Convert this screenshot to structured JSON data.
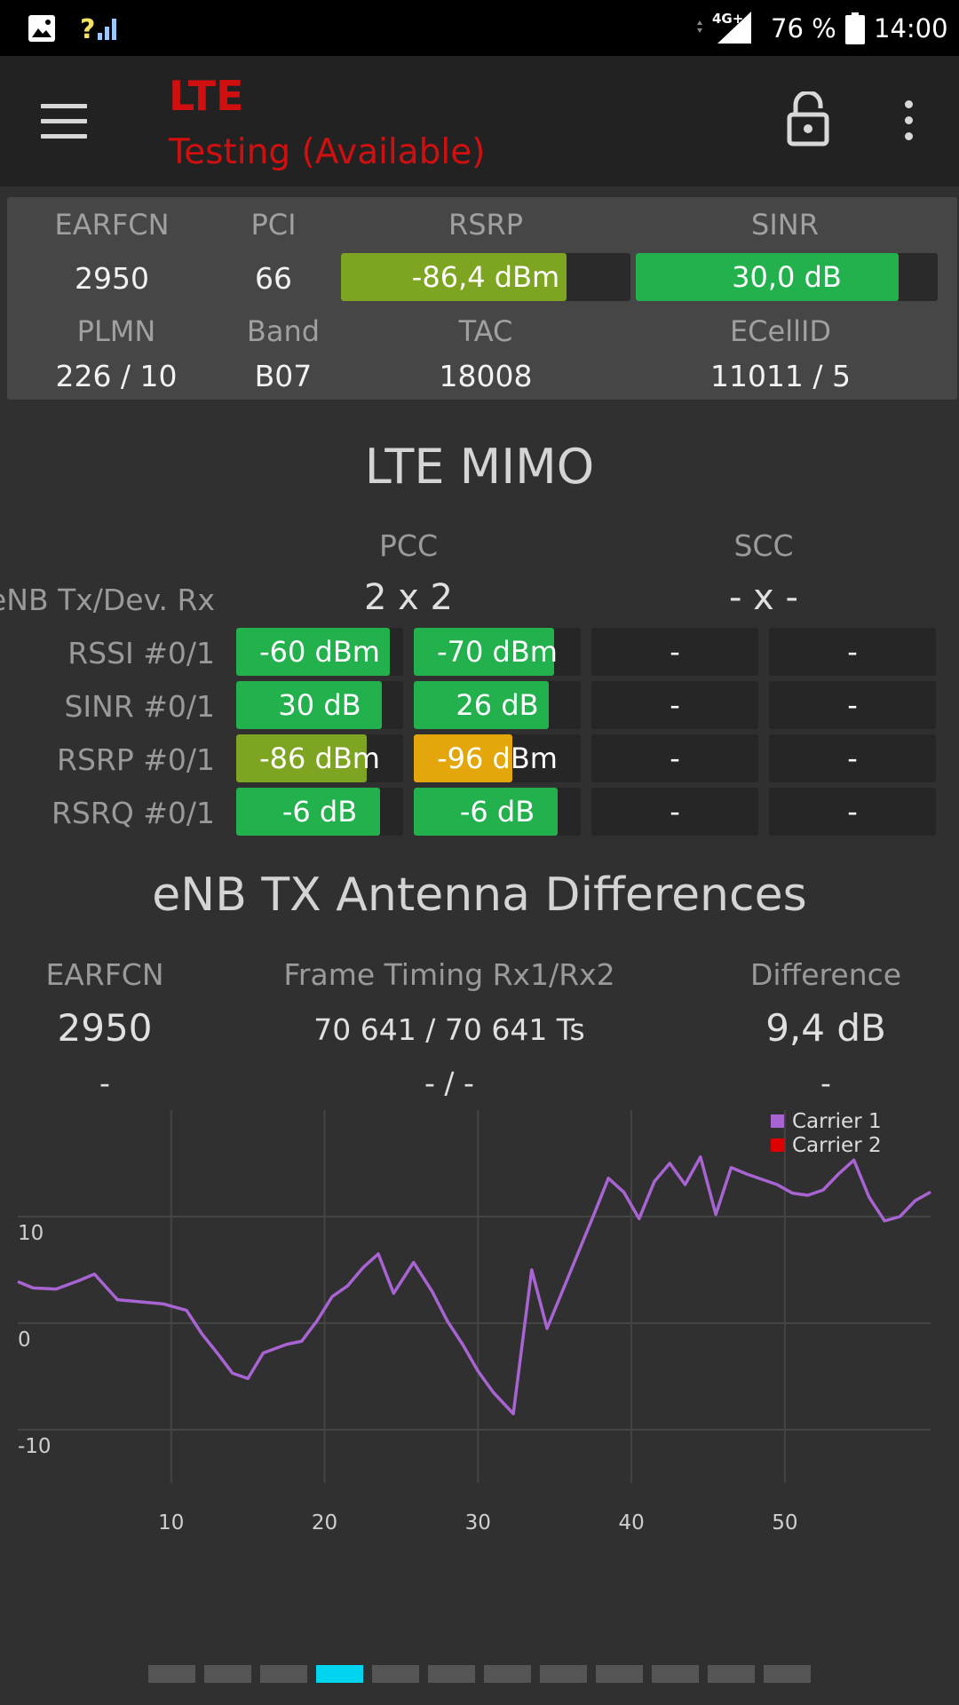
{
  "status_bar": {
    "image_icon": "image-icon",
    "signal_icon": "signal-unknown-icon",
    "network_type": "4G+",
    "battery": "76 %",
    "time": "14:00"
  },
  "toolbar": {
    "title": "LTE",
    "subtitle": "Testing (Available)",
    "title_color": "#d01010",
    "menu_icon": "hamburger-menu-icon",
    "lock_icon": "unlock-icon",
    "more_icon": "more-vert-icon"
  },
  "info": {
    "labels": {
      "earfcn": "EARFCN",
      "pci": "PCI",
      "rsrp": "RSRP",
      "sinr": "SINR",
      "plmn": "PLMN",
      "band": "Band",
      "tac": "TAC",
      "ecellid": "ECellID"
    },
    "earfcn": "2950",
    "pci": "66",
    "rsrp": {
      "text": "-86,4 dBm",
      "level": 0.78,
      "color": "#7ea521"
    },
    "sinr": {
      "text": "30,0 dB",
      "level": 0.87,
      "color": "#22b14c"
    },
    "plmn": "226 / 10",
    "band": "B07",
    "tac": "18008",
    "ecellid": "11011 / 5"
  },
  "mimo": {
    "title": "LTE MIMO",
    "pcc_label": "PCC",
    "scc_label": "SCC",
    "tx_rx_label": "eNB Tx/Dev. Rx",
    "pcc_value": "2 x 2",
    "scc_value": "- x -",
    "rows": [
      {
        "label": "RSSI #0/1",
        "cells": [
          {
            "text": "-60 dBm",
            "level": 0.92,
            "color": "#22b14c"
          },
          {
            "text": "-70 dBm",
            "level": 0.84,
            "color": "#22b14c"
          },
          {
            "text": "-",
            "level": 0,
            "color": "#22b14c"
          },
          {
            "text": "-",
            "level": 0,
            "color": "#22b14c"
          }
        ]
      },
      {
        "label": "SINR #0/1",
        "cells": [
          {
            "text": "30 dB",
            "level": 0.87,
            "color": "#22b14c"
          },
          {
            "text": "26 dB",
            "level": 0.81,
            "color": "#22b14c"
          },
          {
            "text": "-",
            "level": 0,
            "color": "#22b14c"
          },
          {
            "text": "-",
            "level": 0,
            "color": "#22b14c"
          }
        ]
      },
      {
        "label": "RSRP #0/1",
        "cells": [
          {
            "text": "-86 dBm",
            "level": 0.78,
            "color": "#7ea521"
          },
          {
            "text": "-96 dBm",
            "level": 0.59,
            "color": "#e3a70b"
          },
          {
            "text": "-",
            "level": 0,
            "color": "#22b14c"
          },
          {
            "text": "-",
            "level": 0,
            "color": "#22b14c"
          }
        ]
      },
      {
        "label": "RSRQ #0/1",
        "cells": [
          {
            "text": "-6 dB",
            "level": 0.86,
            "color": "#22b14c"
          },
          {
            "text": "-6 dB",
            "level": 0.86,
            "color": "#22b14c"
          },
          {
            "text": "-",
            "level": 0,
            "color": "#22b14c"
          },
          {
            "text": "-",
            "level": 0,
            "color": "#22b14c"
          }
        ]
      }
    ]
  },
  "antenna": {
    "title": "eNB TX Antenna Differences",
    "earfcn_label": "EARFCN",
    "timing_label": "Frame Timing Rx1/Rx2",
    "diff_label": "Difference",
    "row1": {
      "earfcn": "2950",
      "timing": "70 641 / 70 641 Ts",
      "diff": "9,4 dB"
    },
    "row2": {
      "earfcn": "-",
      "timing": "- / -",
      "diff": "-"
    }
  },
  "chart_data": {
    "type": "line",
    "xlim": [
      0,
      59.5
    ],
    "ylim": [
      -15,
      20
    ],
    "x_ticks": [
      10,
      20,
      30,
      40,
      50
    ],
    "y_ticks": [
      10,
      0,
      -10
    ],
    "grid": true,
    "legend_placement": "top-right",
    "series": [
      {
        "name": "Carrier 1",
        "color": "#a864d2",
        "x": [
          0,
          1,
          2.5,
          4,
          5,
          6.5,
          8,
          9.5,
          11,
          12,
          13,
          14,
          15,
          16,
          17.5,
          18.5,
          19.5,
          20.5,
          21.5,
          22.5,
          23.5,
          24.5,
          25.8,
          27,
          28,
          29,
          30,
          31,
          32.3,
          33.5,
          34.5,
          35.5,
          36.5,
          37.5,
          38.5,
          39.5,
          40.5,
          41.5,
          42.5,
          43.5,
          44.5,
          45.5,
          46.5,
          47.5,
          48.5,
          49.5,
          50.5,
          51.5,
          52.5,
          53.5,
          54.5,
          55.5,
          56.5,
          57.5,
          58.5,
          59.5
        ],
        "y": [
          3.9,
          3.3,
          3.2,
          4.0,
          4.6,
          2.2,
          2.0,
          1.8,
          1.2,
          -1.0,
          -2.8,
          -4.7,
          -5.2,
          -2.8,
          -2.0,
          -1.7,
          0.2,
          2.5,
          3.5,
          5.2,
          6.5,
          2.8,
          5.7,
          3.0,
          0.2,
          -2.0,
          -4.5,
          -6.5,
          -8.5,
          5.0,
          -0.5,
          3.0,
          6.5,
          10.0,
          13.6,
          12.3,
          9.8,
          13.3,
          15.0,
          13.0,
          15.6,
          10.2,
          14.6,
          14.0,
          13.5,
          13.0,
          12.2,
          12.0,
          12.5,
          14.0,
          15.3,
          11.8,
          9.6,
          10.0,
          11.5,
          12.3
        ]
      },
      {
        "name": "Carrier 2",
        "color": "#dd0000",
        "x": [],
        "y": []
      }
    ]
  },
  "pager": {
    "count": 12,
    "active_index": 3
  }
}
